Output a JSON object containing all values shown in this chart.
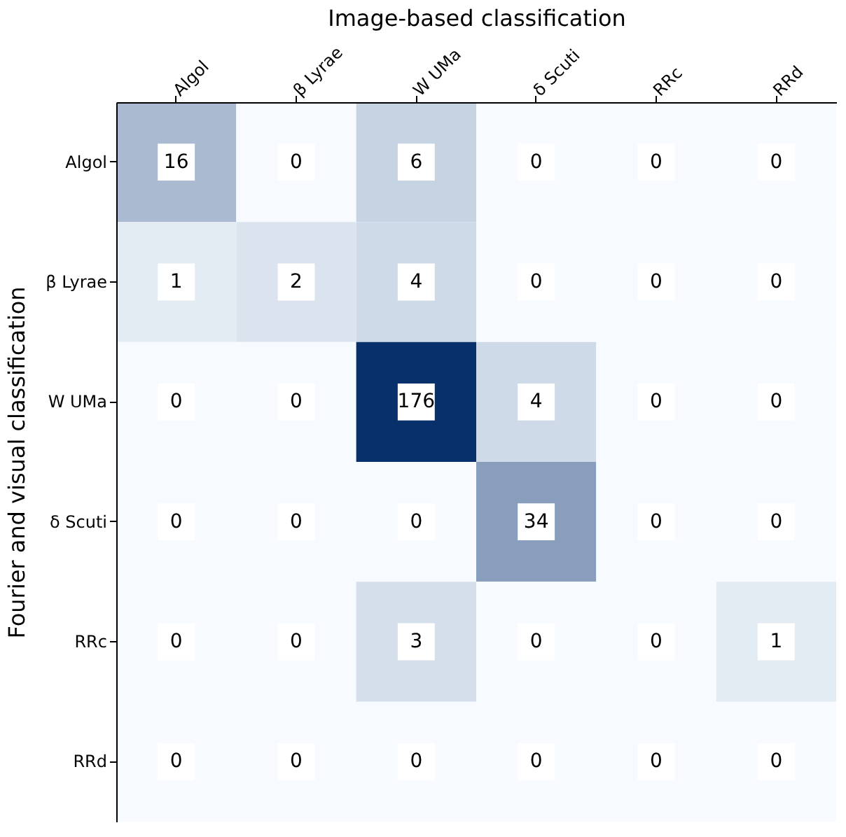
{
  "chart_data": {
    "type": "heatmap",
    "xlabel": "Image-based classification",
    "ylabel": "Fourier and visual classification",
    "categories": [
      "Algol",
      "β Lyrae",
      "W UMa",
      "δ Scuti",
      "RRc",
      "RRd"
    ],
    "y_categories": [
      "Algol",
      "β Lyrae",
      "W UMa",
      "δ Scuti",
      "RRc",
      "RRd"
    ],
    "cells": [
      [
        16,
        0,
        6,
        0,
        0,
        0
      ],
      [
        1,
        2,
        4,
        0,
        0,
        0
      ],
      [
        0,
        0,
        176,
        4,
        0,
        0
      ],
      [
        0,
        0,
        0,
        34,
        0,
        0
      ],
      [
        0,
        0,
        3,
        0,
        0,
        1
      ],
      [
        0,
        0,
        0,
        0,
        0,
        0
      ]
    ],
    "data_labels": true
  }
}
